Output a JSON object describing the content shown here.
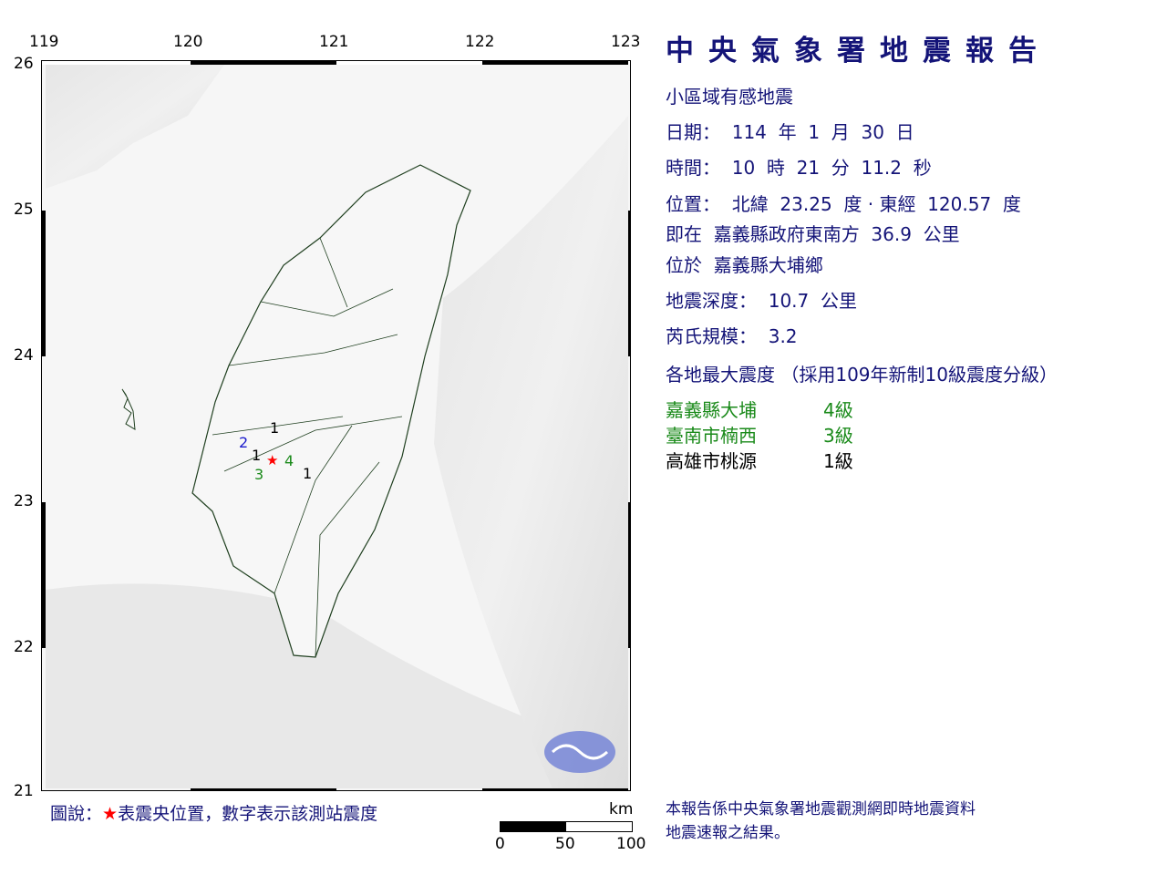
{
  "map": {
    "lon_ticks": [
      "119",
      "120",
      "121",
      "122",
      "123"
    ],
    "lat_ticks": [
      "26",
      "25",
      "24",
      "23",
      "22",
      "21"
    ],
    "epicenter": {
      "lat": 23.25,
      "lon": 120.57,
      "color": "#ff0000"
    },
    "station_marks": [
      {
        "label": "1",
        "color": "#000000"
      },
      {
        "label": "2",
        "color": "#1a1acc"
      },
      {
        "label": "1",
        "color": "#000000"
      },
      {
        "label": "3",
        "color": "#1a8a1a"
      },
      {
        "label": "4",
        "color": "#1a8a1a"
      },
      {
        "label": "1",
        "color": "#000000"
      }
    ],
    "scale": {
      "unit": "km",
      "labels": [
        "0",
        "50",
        "100"
      ]
    },
    "legend": {
      "prefix": "圖說：",
      "star": "★",
      "text": "表震央位置，數字表示該測站震度"
    }
  },
  "report": {
    "title": "中央氣象署地震報告",
    "type": "小區域有感地震",
    "date": "日期：  114  年  1  月  30  日",
    "time": "時間：  10  時  21  分  11.2  秒",
    "location": "位置：  北緯  23.25  度 · 東經  120.57  度",
    "relative": "即在  嘉義縣政府東南方  36.9  公里",
    "located_in": "位於  嘉義縣大埔鄉",
    "depth": "地震深度：  10.7  公里",
    "magnitude": "芮氏規模：  3.2",
    "intensity_header": "各地最大震度 （採用109年新制10級震度分級）",
    "intensities": [
      {
        "place": "嘉義縣大埔",
        "level": "4級",
        "color": "#1a8a1a"
      },
      {
        "place": "臺南市楠西",
        "level": "3級",
        "color": "#1a8a1a"
      },
      {
        "place": "高雄市桃源",
        "level": "1級",
        "color": "#000000"
      }
    ],
    "footer_1": "本報告係中央氣象署地震觀測網即時地震資料",
    "footer_2": "地震速報之結果。"
  }
}
